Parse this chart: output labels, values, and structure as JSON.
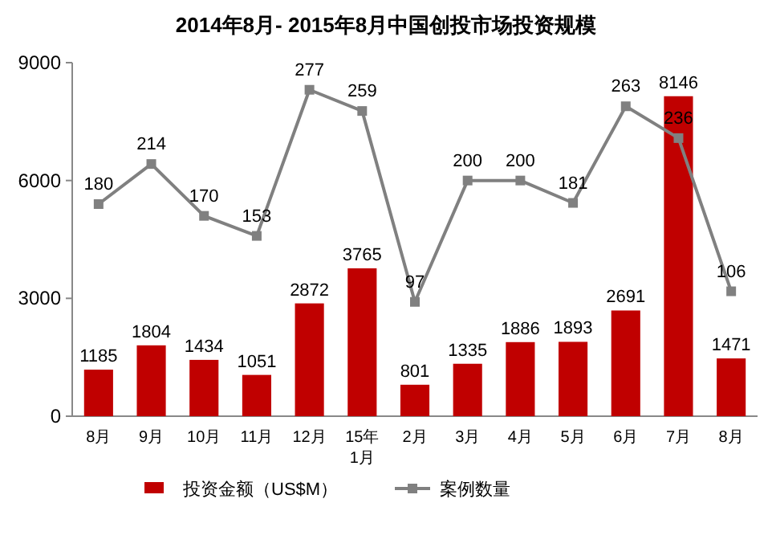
{
  "chart_data": {
    "type": "bar",
    "title": "2014年8月- 2015年8月中国创投市场投资规模",
    "categories": [
      "8月",
      "9月",
      "10月",
      "11月",
      "12月",
      "15年\n1月",
      "2月",
      "3月",
      "4月",
      "5月",
      "6月",
      "7月",
      "8月"
    ],
    "series": [
      {
        "name": "投资金额（US$M）",
        "color": "#c00000",
        "values": [
          1185,
          1804,
          1434,
          1051,
          2872,
          3765,
          801,
          1335,
          1886,
          1893,
          2691,
          8146,
          1471
        ]
      },
      {
        "name": "案例数量",
        "type": "line",
        "axis": "y2",
        "color": "#808080",
        "marker": "square",
        "line_style": "solid",
        "values": [
          180,
          214,
          170,
          153,
          277,
          259,
          97,
          200,
          200,
          181,
          263,
          236,
          106
        ]
      }
    ],
    "ylim": [
      0,
      9000
    ],
    "yticks": [
      0,
      3000,
      6000,
      9000
    ],
    "y2lim": [
      0,
      300
    ],
    "data_labels": true,
    "legend": "bottom",
    "grid": false
  }
}
